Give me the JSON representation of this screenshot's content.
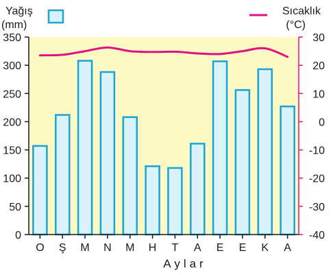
{
  "chart_data": {
    "type": "bar+line",
    "categories": [
      "O",
      "Ş",
      "M",
      "N",
      "M",
      "H",
      "T",
      "A",
      "E",
      "E",
      "K",
      "A"
    ],
    "series": [
      {
        "name": "Yağış",
        "unit": "(mm)",
        "type": "bar",
        "axis": "left",
        "values": [
          157,
          212,
          308,
          288,
          208,
          121,
          118,
          161,
          307,
          256,
          293,
          227
        ],
        "color": "#1aa3d6",
        "fill": "#d9f2fb"
      },
      {
        "name": "Sıcaklık",
        "unit": "(°C)",
        "type": "line",
        "axis": "right",
        "values": [
          23.5,
          23.7,
          25.0,
          26.3,
          25.0,
          24.7,
          24.8,
          24.2,
          24.0,
          25.0,
          26.0,
          23.0
        ],
        "color": "#e0127f"
      }
    ],
    "xlabel": "Aylar",
    "ylim_left": [
      0,
      350
    ],
    "yticks_left": [
      0,
      50,
      100,
      150,
      200,
      250,
      300,
      350
    ],
    "ylim_right": [
      -40,
      30
    ],
    "yticks_right": [
      -40,
      -30,
      -20,
      -10,
      0,
      10,
      20,
      30
    ],
    "legend": "top",
    "grid": false,
    "colors": {
      "background": "#fdf9c4",
      "left_axis": "#1a1a1a",
      "right_axis": "#e0127f"
    }
  }
}
